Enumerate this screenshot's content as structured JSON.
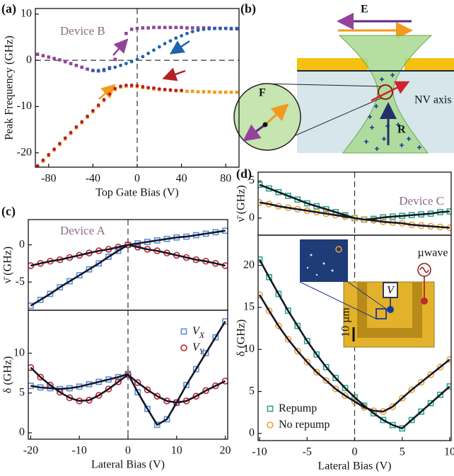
{
  "chart_data": [
    {
      "type": "scatter",
      "panel_label": "(a)",
      "annotation": "Device B",
      "x_label": "Top Gate Bias (V)",
      "y_label": "Peak Frequency (GHz)",
      "xlim": [
        -92,
        92
      ],
      "xticks": [
        -80,
        -40,
        0,
        40,
        80
      ],
      "ylim": [
        -23.1,
        11.2
      ],
      "yticks": [
        -20,
        -10,
        0,
        10
      ],
      "vline": 0,
      "hline": 0,
      "series": [
        {
          "color": "#93449a",
          "marker": "square",
          "x": [
            -90,
            -85,
            -80,
            -75,
            -70,
            -65,
            -60,
            -55,
            -50,
            -45,
            -40,
            -35,
            -30,
            -25,
            -20,
            -15,
            -10,
            -5,
            0,
            5,
            10,
            15,
            20,
            25,
            30,
            35,
            40,
            45,
            50,
            55,
            60,
            65,
            70,
            75,
            80,
            85,
            90
          ],
          "values": [
            1.3,
            1.0,
            0.7,
            0.4,
            0.1,
            -0.3,
            -0.7,
            -1.1,
            -1.5,
            -1.9,
            -2.2,
            -2.3,
            -2.2,
            -1.6,
            0.2,
            3.0,
            5.8,
            6.7,
            6.9,
            7.0,
            7.0,
            7.1,
            7.1,
            7.1,
            7.1,
            7.1,
            7.1,
            7.0,
            7.0,
            7.0,
            7.0,
            7.0,
            6.9,
            6.9,
            6.9,
            6.8,
            6.8
          ]
        },
        {
          "color": "#1f63ad",
          "marker": "dot",
          "x": [
            -40,
            -35,
            -30,
            -25,
            -20,
            -15,
            -10,
            -5,
            0,
            5,
            10,
            15,
            20,
            25,
            30,
            35,
            40,
            45,
            50,
            55,
            60,
            65,
            70,
            75,
            80,
            85,
            90
          ],
          "values": [
            -2.2,
            -2.2,
            -2.0,
            -1.8,
            -1.5,
            -1.1,
            -0.7,
            -0.3,
            0.2,
            0.8,
            1.5,
            2.2,
            2.9,
            3.6,
            4.2,
            4.8,
            5.3,
            5.8,
            6.2,
            6.5,
            6.7,
            6.8,
            6.9,
            6.9,
            6.9,
            6.9,
            6.9
          ]
        },
        {
          "color": "#f39a1e",
          "marker": "square",
          "x": [
            -90,
            -85,
            -80,
            -75,
            -70,
            -65,
            -60,
            -55,
            -50,
            -45,
            -40,
            -35,
            -30,
            -25,
            -20,
            -15,
            -10,
            -5,
            0,
            5,
            10,
            15,
            20,
            25,
            30,
            35,
            40,
            45,
            50,
            55,
            60,
            65,
            70,
            75,
            80,
            85,
            90
          ],
          "values": [
            -23.0,
            -21.8,
            -20.6,
            -19.4,
            -18.2,
            -17.0,
            -15.8,
            -14.6,
            -13.5,
            -12.3,
            -11.1,
            -9.9,
            -8.7,
            -7.5,
            -6.3,
            -5.8,
            -5.6,
            -5.6,
            -5.7,
            -5.9,
            -6.0,
            -6.2,
            -6.3,
            -6.4,
            -6.5,
            -6.6,
            -6.6,
            -6.7,
            -6.7,
            -6.8,
            -6.8,
            -6.8,
            -6.9,
            -6.9,
            -6.9,
            -6.9,
            -6.9
          ]
        },
        {
          "color": "#b52026",
          "marker": "dot",
          "x": [
            -90,
            -85,
            -80,
            -75,
            -70,
            -65,
            -60,
            -55,
            -50,
            -45,
            -40,
            -35,
            -30,
            -25,
            -20,
            -15,
            -10,
            -5,
            0,
            5,
            10,
            15,
            20,
            25,
            30,
            35,
            40
          ],
          "values": [
            -22.8,
            -21.6,
            -20.4,
            -19.2,
            -18.0,
            -16.8,
            -15.6,
            -14.4,
            -13.3,
            -12.1,
            -10.9,
            -9.7,
            -8.5,
            -7.3,
            -6.1,
            -5.6,
            -5.4,
            -5.4,
            -5.5,
            -5.7,
            -5.9,
            -6.0,
            -6.2,
            -6.3,
            -6.4,
            -6.5,
            -6.5
          ]
        }
      ]
    },
    {
      "type": "scatter",
      "panel_label": "(c)",
      "annotation": "Device A",
      "y_label": "ν̄ (GHz)",
      "fit": true,
      "xlim": [
        -20.5,
        20.5
      ],
      "ylim": [
        -8.8,
        3.4
      ],
      "yticks": [
        -5,
        0
      ],
      "vline": 0,
      "x": [
        -20,
        -18,
        -16,
        -14,
        -12,
        -10,
        -8,
        -6,
        -4,
        -2,
        0,
        2,
        4,
        6,
        8,
        10,
        12,
        14,
        16,
        18,
        20
      ],
      "series": [
        {
          "color": "#5a8fd8",
          "marker": "open-square",
          "values": [
            -8.2,
            -7.4,
            -6.6,
            -5.7,
            -4.9,
            -4.1,
            -3.3,
            -2.5,
            -1.6,
            -0.8,
            0,
            0.2,
            0.4,
            0.6,
            0.8,
            1.0,
            1.1,
            1.3,
            1.5,
            1.7,
            1.9
          ]
        },
        {
          "color": "#c8202a",
          "marker": "open-circle",
          "values": [
            -2.8,
            -2.5,
            -2.2,
            -2.0,
            -1.7,
            -1.4,
            -1.1,
            -0.8,
            -0.6,
            -0.3,
            0,
            -0.3,
            -0.6,
            -0.8,
            -1.1,
            -1.4,
            -1.7,
            -2.0,
            -2.2,
            -2.5,
            -2.8
          ]
        }
      ]
    },
    {
      "type": "scatter",
      "x_label": "Lateral Bias (V)",
      "y_label": "δ (GHz)",
      "fit": true,
      "legend": "upper right",
      "xlim": [
        -20.5,
        20.5
      ],
      "xticks": [
        -20,
        -10,
        0,
        10,
        20
      ],
      "ylim": [
        -0.8,
        15.4
      ],
      "yticks": [
        0,
        5,
        10
      ],
      "vline": 0,
      "x": [
        -20,
        -18,
        -16,
        -14,
        -12,
        -10,
        -8,
        -6,
        -4,
        -2,
        0,
        2,
        4,
        6,
        8,
        10,
        12,
        14,
        16,
        18,
        20
      ],
      "series": [
        {
          "name": "V",
          "subscript": "X",
          "color": "#5a8fd8",
          "marker": "open-square",
          "values": [
            5.9,
            5.7,
            5.6,
            5.5,
            5.6,
            5.8,
            6.1,
            6.4,
            6.7,
            7.0,
            7.4,
            5.1,
            3.0,
            1.0,
            1.7,
            3.8,
            6.0,
            8.0,
            10.0,
            12.0,
            14.0
          ]
        },
        {
          "name": "V",
          "subscript": "Y",
          "color": "#c8202a",
          "marker": "open-circle",
          "values": [
            8.2,
            7.0,
            6.0,
            5.1,
            4.4,
            4.0,
            4.1,
            4.7,
            5.5,
            6.4,
            7.3,
            6.3,
            5.4,
            4.6,
            4.0,
            3.8,
            4.0,
            4.6,
            5.3,
            5.9,
            6.5
          ]
        }
      ]
    },
    {
      "type": "scatter",
      "panel_label": "(d)",
      "annotation": "Device C",
      "y_label": "ν̄ (GHz)",
      "fit": true,
      "xlim": [
        -10.15,
        10.15
      ],
      "ylim": [
        -2.3,
        6.2
      ],
      "yticks": [
        0,
        5
      ],
      "vline": 0,
      "x": [
        -10,
        -9,
        -8,
        -7,
        -6,
        -5,
        -4,
        -3,
        -2,
        -1,
        0,
        1,
        2,
        3,
        4,
        5,
        6,
        7,
        8,
        9,
        10
      ],
      "series": [
        {
          "color": "#2aa889",
          "marker": "open-square",
          "values": [
            4.5,
            4.0,
            3.5,
            3.0,
            2.5,
            2.0,
            1.6,
            1.2,
            0.8,
            0.4,
            0,
            -0.2,
            -0.1,
            0.1,
            0.2,
            0.3,
            0.4,
            0.5,
            0.6,
            0.8,
            0.9
          ]
        },
        {
          "color": "#f0a030",
          "marker": "open-circle",
          "values": [
            2.1,
            1.9,
            1.6,
            1.4,
            1.2,
            1.0,
            0.8,
            0.6,
            0.4,
            0.2,
            0,
            -0.2,
            -0.3,
            -0.5,
            -0.6,
            -0.7,
            -0.9,
            -1.0,
            -1.1,
            -1.2,
            -1.3
          ]
        }
      ]
    },
    {
      "type": "scatter",
      "x_label": "Lateral Bias (V)",
      "y_label": "δ (GHz)",
      "fit": true,
      "legend": "lower left",
      "xlim": [
        -10.15,
        10.15
      ],
      "xticks": [
        -10,
        -5,
        0,
        5,
        10
      ],
      "ylim": [
        -0.85,
        23.6
      ],
      "yticks": [
        0,
        5,
        10,
        15,
        20
      ],
      "vline": 0,
      "x": [
        -10,
        -9,
        -8,
        -7,
        -6,
        -5,
        -4,
        -3,
        -2,
        -1,
        0,
        1,
        2,
        3,
        4,
        5,
        6,
        7,
        8,
        9,
        10
      ],
      "series": [
        {
          "name": "Repump",
          "color": "#2aa889",
          "marker": "open-square",
          "values": [
            20.7,
            18.6,
            16.6,
            14.6,
            12.8,
            11.0,
            9.4,
            7.9,
            6.6,
            5.4,
            4.3,
            3.3,
            2.4,
            1.6,
            1.0,
            0.6,
            1.6,
            2.6,
            3.6,
            4.6,
            5.6
          ]
        },
        {
          "name": "No repump",
          "color": "#f0a030",
          "marker": "open-circle",
          "values": [
            16.5,
            14.6,
            12.8,
            11.2,
            9.8,
            8.5,
            7.3,
            6.3,
            5.3,
            4.5,
            3.8,
            3.1,
            2.7,
            2.6,
            3.2,
            4.2,
            5.2,
            6.1,
            7.0,
            7.9,
            8.8
          ]
        }
      ]
    }
  ],
  "diagram": {
    "panel_label": "(b)",
    "field_label": "E",
    "inset_label": "F",
    "nv_label": "NV axis",
    "r_label": "R"
  },
  "inset": {
    "voltage_label": "V",
    "microwave_label": "µwave",
    "scale_label": "10 µm"
  }
}
